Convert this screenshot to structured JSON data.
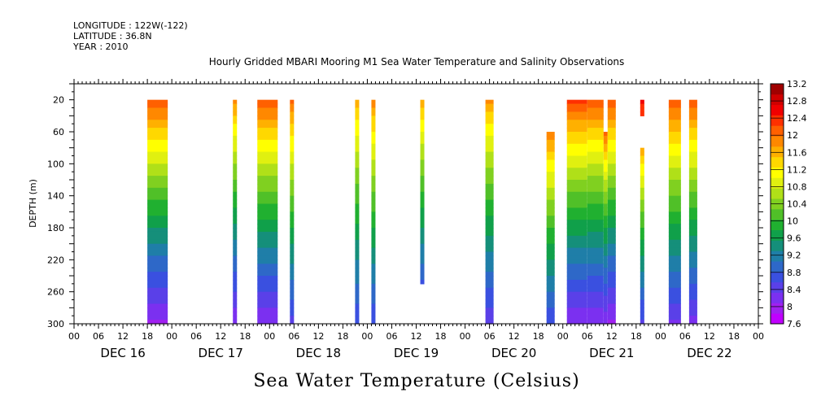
{
  "header": {
    "longitude": "LONGITUDE : 122W(-122)",
    "latitude": "LATITUDE : 36.8N",
    "year": "YEAR : 2010"
  },
  "colors": {
    "palette": [
      "#c000ff",
      "#a020f0",
      "#7b30f0",
      "#5a40e8",
      "#3a50e0",
      "#2e68c8",
      "#1f7ea8",
      "#158f7a",
      "#10a04a",
      "#20b030",
      "#50c028",
      "#80d020",
      "#b0e018",
      "#e0f010",
      "#ffff00",
      "#ffd800",
      "#ffb000",
      "#ff8800",
      "#ff6000",
      "#ff3000",
      "#f00000",
      "#d00000",
      "#a00000"
    ],
    "missing": "#ffffff"
  },
  "chart_data": {
    "type": "heatmap",
    "title": "Hourly Gridded MBARI Mooring M1 Sea Water Temperature and Salinity Observations",
    "xlabel": "Sea Water Temperature (Celsius)",
    "ylabel": "DEPTH (m)",
    "x_ticks_hours": [
      "00",
      "06",
      "12",
      "18",
      "00",
      "06",
      "12",
      "18",
      "00",
      "06",
      "12",
      "18",
      "00",
      "06",
      "12",
      "18",
      "00",
      "06",
      "12",
      "18",
      "00",
      "06",
      "12",
      "18",
      "00",
      "06",
      "12",
      "18",
      "00"
    ],
    "day_labels": [
      "DEC 16",
      "DEC 17",
      "DEC 18",
      "DEC 19",
      "DEC 20",
      "DEC 21",
      "DEC 22"
    ],
    "y_ticks": [
      "20",
      "60",
      "100",
      "140",
      "180",
      "220",
      "260",
      "300"
    ],
    "ylim": [
      300,
      0
    ],
    "xlim_hours": [
      0,
      168
    ],
    "colorbar": {
      "min": 7.6,
      "max": 13.2,
      "step": 0.2,
      "labels": [
        "13.2",
        "12.8",
        "12.4",
        "12",
        "11.6",
        "11.2",
        "10.8",
        "10.4",
        "10",
        "9.6",
        "9.2",
        "8.8",
        "8.4",
        "8",
        "7.6"
      ]
    },
    "columns": [
      {
        "start_hour": 18,
        "end_hour": 23,
        "top_depth": 20,
        "bottom_depth": 300,
        "surface_temp": 12.4,
        "bottom_temp": 7.9
      },
      {
        "start_hour": 39,
        "end_hour": 40,
        "top_depth": 20,
        "bottom_depth": 300,
        "surface_temp": 12.0,
        "bottom_temp": 8.0
      },
      {
        "start_hour": 45,
        "end_hour": 50,
        "top_depth": 20,
        "bottom_depth": 300,
        "surface_temp": 12.4,
        "bottom_temp": 8.0
      },
      {
        "start_hour": 53,
        "end_hour": 54,
        "top_depth": 20,
        "bottom_depth": 300,
        "surface_temp": 12.2,
        "bottom_temp": 8.4
      },
      {
        "start_hour": 69,
        "end_hour": 70,
        "top_depth": 20,
        "bottom_depth": 300,
        "surface_temp": 11.8,
        "bottom_temp": 8.5
      },
      {
        "start_hour": 73,
        "end_hour": 74,
        "top_depth": 20,
        "bottom_depth": 300,
        "surface_temp": 12.0,
        "bottom_temp": 8.5
      },
      {
        "start_hour": 85,
        "end_hour": 86,
        "top_depth": 20,
        "bottom_depth": 250,
        "surface_temp": 11.8,
        "bottom_temp": 8.7
      },
      {
        "start_hour": 101,
        "end_hour": 103,
        "top_depth": 20,
        "bottom_depth": 300,
        "surface_temp": 11.9,
        "bottom_temp": 8.3
      },
      {
        "start_hour": 116,
        "end_hour": 118,
        "top_depth": 60,
        "bottom_depth": 300,
        "surface_temp": 12.1,
        "bottom_temp": 8.5
      },
      {
        "start_hour": 121,
        "end_hour": 126,
        "top_depth": 20,
        "bottom_depth": 300,
        "surface_temp": 12.5,
        "bottom_temp": 8.0
      },
      {
        "start_hour": 126,
        "end_hour": 130,
        "top_depth": 20,
        "bottom_depth": 300,
        "surface_temp": 12.4,
        "bottom_temp": 8.0
      },
      {
        "start_hour": 130,
        "end_hour": 131,
        "top_depth": 60,
        "bottom_depth": 300,
        "surface_temp": 12.2,
        "bottom_temp": 8.0
      },
      {
        "start_hour": 131,
        "end_hour": 133,
        "top_depth": 20,
        "bottom_depth": 300,
        "surface_temp": 12.4,
        "bottom_temp": 7.9
      },
      {
        "start_hour": 139,
        "end_hour": 140,
        "top_depth": 20,
        "bottom_depth": 40,
        "surface_temp": 12.6,
        "bottom_temp": 12.5
      },
      {
        "start_hour": 139,
        "end_hour": 140,
        "top_depth": 80,
        "bottom_depth": 300,
        "surface_temp": 11.8,
        "bottom_temp": 8.4
      },
      {
        "start_hour": 146,
        "end_hour": 149,
        "top_depth": 20,
        "bottom_depth": 300,
        "surface_temp": 12.4,
        "bottom_temp": 8.2
      },
      {
        "start_hour": 151,
        "end_hour": 153,
        "top_depth": 20,
        "bottom_depth": 300,
        "surface_temp": 12.4,
        "bottom_temp": 8.1
      }
    ]
  }
}
